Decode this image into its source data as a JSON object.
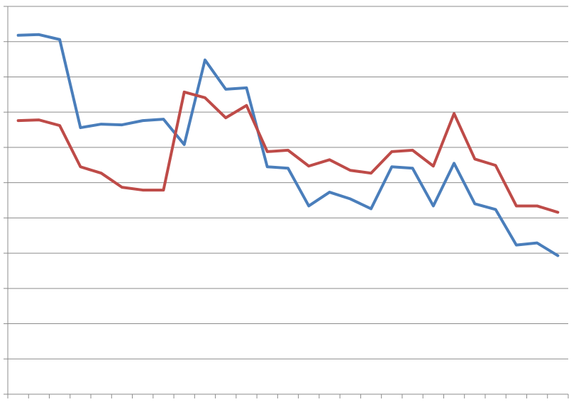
{
  "chart_data": {
    "type": "line",
    "categories": [
      null,
      null,
      null,
      null,
      null,
      null,
      null,
      null,
      null,
      null,
      null,
      null,
      null,
      null,
      null,
      null,
      null,
      null,
      null,
      null,
      null,
      null,
      null,
      null,
      null,
      null,
      null
    ],
    "series": [
      {
        "color": "#4a7ebb",
        "values": [
          10.18,
          10.2,
          10.06,
          7.56,
          7.66,
          7.64,
          7.76,
          7.8,
          7.08,
          9.48,
          8.65,
          8.69,
          6.45,
          6.41,
          5.34,
          5.73,
          5.54,
          5.26,
          6.45,
          6.41,
          5.34,
          6.55,
          5.4,
          5.24,
          4.23,
          4.29,
          3.93
        ]
      },
      {
        "color": "#be4b48",
        "values": [
          7.76,
          7.78,
          7.62,
          6.45,
          6.27,
          5.87,
          5.79,
          5.79,
          8.57,
          8.41,
          7.84,
          8.19,
          6.88,
          6.92,
          6.47,
          6.65,
          6.35,
          6.27,
          6.88,
          6.92,
          6.47,
          7.96,
          6.67,
          6.49,
          5.34,
          5.34,
          5.16
        ]
      }
    ],
    "ylim": [
      0,
      11
    ],
    "yticks": [
      0,
      1,
      2,
      3,
      4,
      5,
      6,
      7,
      8,
      9,
      10,
      11
    ],
    "grid": true
  }
}
